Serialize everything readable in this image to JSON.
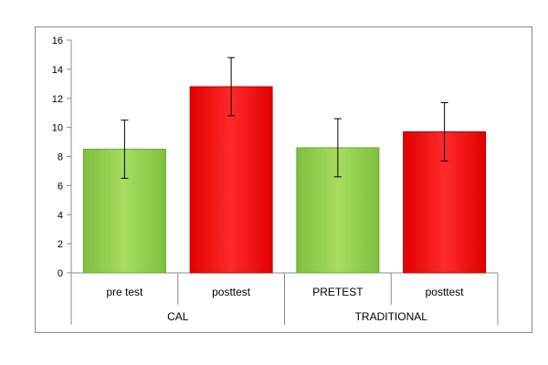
{
  "chart_data": {
    "type": "bar",
    "title": "",
    "xlabel": "",
    "ylabel": "",
    "ylim": [
      0,
      16
    ],
    "yticks": [
      0,
      2,
      4,
      6,
      8,
      10,
      12,
      14,
      16
    ],
    "grid": false,
    "legend": "none",
    "groups": [
      {
        "label": "CAL",
        "categories": [
          "pre test",
          "posttest"
        ]
      },
      {
        "label": "TRADITIONAL",
        "categories": [
          "PRETEST",
          "posttest"
        ]
      }
    ],
    "categories": [
      "pre test",
      "posttest",
      "PRETEST",
      "posttest"
    ],
    "values": [
      8.5,
      12.8,
      8.6,
      9.7
    ],
    "error_low": [
      6.5,
      10.8,
      6.6,
      7.7
    ],
    "error_high": [
      10.5,
      14.8,
      10.6,
      11.7
    ],
    "bar_colors": [
      "#92d050",
      "#ff0000",
      "#92d050",
      "#ff0000"
    ]
  }
}
